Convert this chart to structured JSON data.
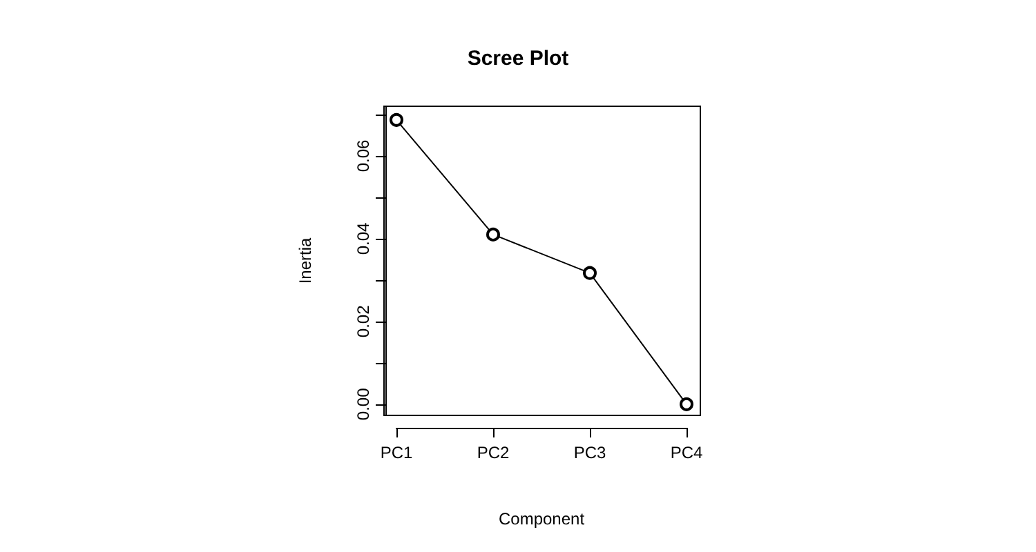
{
  "chart_data": {
    "type": "line",
    "title": "Scree Plot",
    "xlabel": "Component",
    "ylabel": "Inertia",
    "categories": [
      "PC1",
      "PC2",
      "PC3",
      "PC4"
    ],
    "series": [
      {
        "color": "#000000",
        "values": [
          0.0687,
          0.041,
          0.0317,
          0.0
        ]
      }
    ],
    "ylim": [
      -0.0027,
      0.072
    ],
    "yticks": [
      {
        "value": 0,
        "label": "0.00"
      },
      {
        "value": 0.01,
        "label": null
      },
      {
        "value": 0.02,
        "label": "0.02"
      },
      {
        "value": 0.03,
        "label": null
      },
      {
        "value": 0.04,
        "label": "0.04"
      },
      {
        "value": 0.05,
        "label": null
      },
      {
        "value": 0.06,
        "label": "0.06"
      },
      {
        "value": 0.07,
        "label": null
      }
    ],
    "grid": false,
    "marker": "circle",
    "line_style": "solid"
  }
}
